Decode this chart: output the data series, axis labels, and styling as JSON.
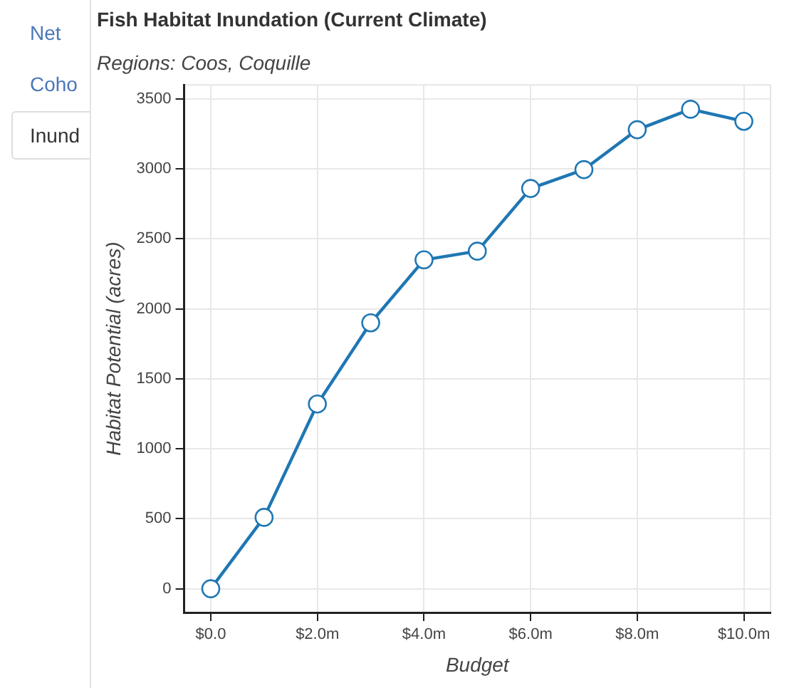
{
  "chart_data": {
    "type": "line",
    "title": "Fish Habitat Inundation (Current Climate)",
    "subtitle": "Regions: Coos, Coquille",
    "xlabel": "Budget",
    "ylabel": "Habitat Potential (acres)",
    "annotations": [
      "Net",
      "Coho",
      "Inund"
    ],
    "x": [
      0,
      1,
      2,
      3,
      4,
      5,
      6,
      7,
      8,
      9,
      10
    ],
    "series": [
      {
        "color": "#1f77b4",
        "values": [
          0,
          510,
          1320,
          1900,
          2350,
          2412,
          2860,
          2995,
          3280,
          3426,
          3340
        ]
      }
    ],
    "xlim": [
      -0.5,
      10.5
    ],
    "xticks": [
      {
        "value": 0,
        "label": "$0.0"
      },
      {
        "value": 2,
        "label": "$2.0m"
      },
      {
        "value": 4,
        "label": "$4.0m"
      },
      {
        "value": 6,
        "label": "$6.0m"
      },
      {
        "value": 8,
        "label": "$8.0m"
      },
      {
        "value": 10,
        "label": "$10.0m"
      }
    ],
    "ylim": [
      -170,
      3600
    ],
    "yticks": [
      0,
      500,
      1000,
      1500,
      2000,
      2500,
      3000,
      3500
    ],
    "grid": true,
    "legend": false,
    "marker": "circle",
    "line_style": "solid"
  }
}
